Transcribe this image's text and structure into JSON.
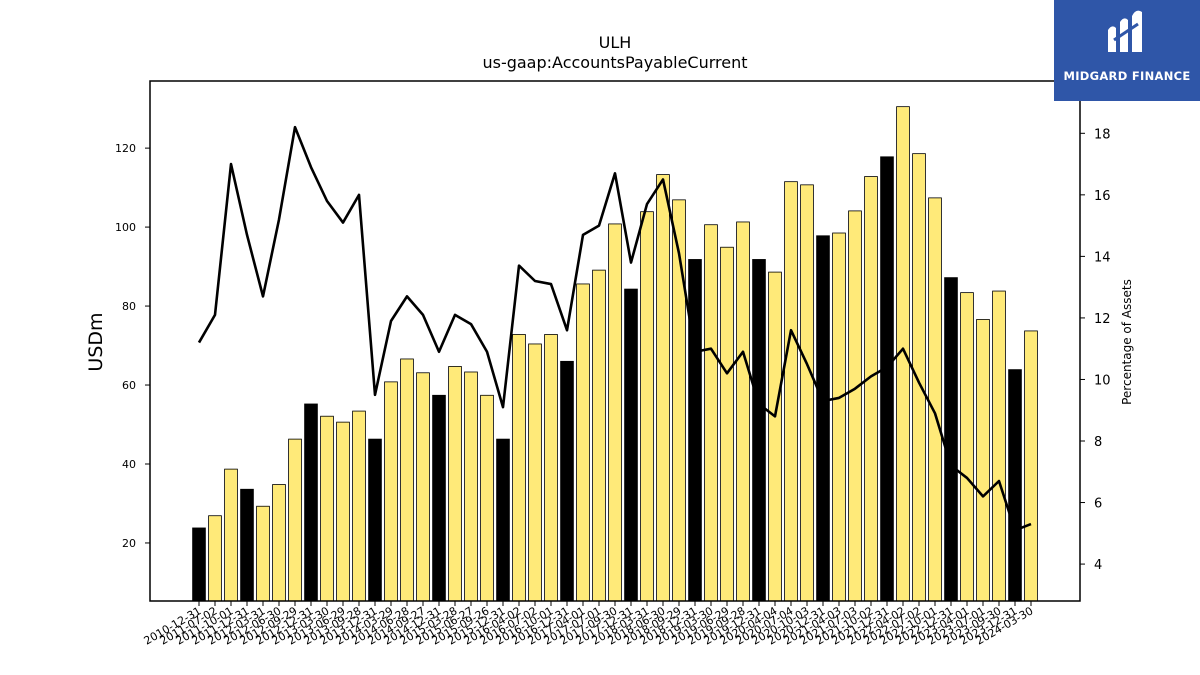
{
  "chart_data": {
    "type": "bar",
    "title": "ULH",
    "subtitle": "us-gaap:AccountsPayableCurrent",
    "ylabel": "USDm",
    "ylabel_right": "Percentage of Assets",
    "ylim": [
      5.3,
      137
    ],
    "ylim_right": [
      2.8,
      19.7
    ],
    "yticks": [
      20,
      40,
      60,
      80,
      100,
      120
    ],
    "yticks_right": [
      4,
      6,
      8,
      10,
      12,
      14,
      16,
      18
    ],
    "bar_colors": {
      "annual": "#000000",
      "quarterly": "#ffea79"
    },
    "line_color": "#000000",
    "categories": [
      "2010-12-31",
      "2011-07-02",
      "2011-10-01",
      "2011-12-31",
      "2012-03-31",
      "2012-06-30",
      "2012-09-29",
      "2012-12-31",
      "2013-03-30",
      "2013-06-29",
      "2013-09-28",
      "2013-12-31",
      "2014-03-29",
      "2014-06-28",
      "2014-09-27",
      "2014-12-31",
      "2015-03-28",
      "2015-06-27",
      "2015-09-26",
      "2015-12-31",
      "2016-04-02",
      "2016-07-02",
      "2016-10-01",
      "2016-12-31",
      "2017-04-01",
      "2017-07-01",
      "2017-09-30",
      "2017-12-31",
      "2018-03-31",
      "2018-06-30",
      "2018-09-29",
      "2018-12-31",
      "2019-03-30",
      "2019-06-29",
      "2019-09-28",
      "2019-12-31",
      "2020-04-04",
      "2020-07-04",
      "2020-10-03",
      "2020-12-31",
      "2021-04-03",
      "2021-07-03",
      "2021-10-02",
      "2021-12-31",
      "2022-04-02",
      "2022-07-02",
      "2022-10-01",
      "2022-12-31",
      "2023-04-01",
      "2023-07-01",
      "2023-09-30",
      "2023-12-31",
      "2024-03-30"
    ],
    "tick_labels": [
      "2010-12-31",
      "2011-07-02",
      "2011-10-01",
      "2011-12-31",
      "2012-03-31",
      "2012-06-30",
      "2012-09-29",
      "2012-12-31",
      "2013-03-30",
      "2013-06-29",
      "2013-09-28",
      "2013-12-31",
      "2014-03-29",
      "2014-06-28",
      "2014-09-27",
      "2014-12-31",
      "2015-03-28",
      "2015-06-27",
      "2015-09-26",
      "2015-12-31",
      "2016-04-02",
      "2016-07-02",
      "2016-10-01",
      "2016-12-31",
      "2017-04-01",
      "2017-07-01",
      "2017-09-30",
      "2017-12-31",
      "2018-03-31",
      "2018-06-30",
      "2018-09-29",
      "2018-12-31",
      "2019-03-30",
      "2019-06-29",
      "2019-09-28",
      "2019-12-31",
      "2020-04-04",
      "2020-07-04",
      "2020-10-03",
      "2020-12-31",
      "2021-04-03",
      "2021-07-03",
      "2021-10-02",
      "2021-12-31",
      "2022-04-02",
      "2022-07-02",
      "2022-10-01",
      "2022-12-31",
      "2023-04-01",
      "2023-07-01",
      "2023-09-30",
      "2023-12-31",
      "2024-03-30"
    ],
    "series": [
      {
        "type": "bar",
        "axis": "left",
        "values": [
          23.8,
          26.9,
          38.7,
          33.6,
          29.3,
          34.8,
          46.3,
          55.2,
          52.1,
          50.6,
          53.4,
          46.3,
          60.8,
          66.6,
          63.1,
          57.4,
          64.7,
          63.3,
          57.4,
          46.3,
          72.8,
          70.4,
          72.8,
          66.0,
          85.6,
          89.1,
          100.8,
          84.3,
          103.9,
          113.3,
          106.9,
          91.8,
          100.6,
          94.9,
          101.3,
          91.8,
          88.6,
          111.5,
          110.7,
          97.8,
          98.5,
          104.1,
          112.8,
          117.8,
          130.5,
          118.6,
          107.4,
          87.2,
          83.4,
          76.6,
          83.8,
          63.9,
          73.7
        ],
        "annual": [
          true,
          false,
          false,
          true,
          false,
          false,
          false,
          true,
          false,
          false,
          false,
          true,
          false,
          false,
          false,
          true,
          false,
          false,
          false,
          true,
          false,
          false,
          false,
          true,
          false,
          false,
          false,
          true,
          false,
          false,
          false,
          true,
          false,
          false,
          false,
          true,
          false,
          false,
          false,
          true,
          false,
          false,
          false,
          true,
          false,
          false,
          false,
          true,
          false,
          false,
          false,
          true,
          false
        ]
      },
      {
        "type": "line",
        "axis": "right",
        "values": [
          11.2,
          12.1,
          17.0,
          14.7,
          12.7,
          15.2,
          18.2,
          16.9,
          15.8,
          15.1,
          16.0,
          9.5,
          11.9,
          12.7,
          12.1,
          10.9,
          12.1,
          11.8,
          10.9,
          9.1,
          13.7,
          13.2,
          13.1,
          11.6,
          14.7,
          15.0,
          16.7,
          13.8,
          15.7,
          16.5,
          14.1,
          10.9,
          11.0,
          10.2,
          10.9,
          9.2,
          8.8,
          11.6,
          10.5,
          9.3,
          9.4,
          9.7,
          10.1,
          10.4,
          11.0,
          9.9,
          8.9,
          7.2,
          6.8,
          6.2,
          6.7,
          5.1,
          5.3
        ]
      }
    ]
  },
  "logo": {
    "text": "MIDGARD FINANCE"
  }
}
